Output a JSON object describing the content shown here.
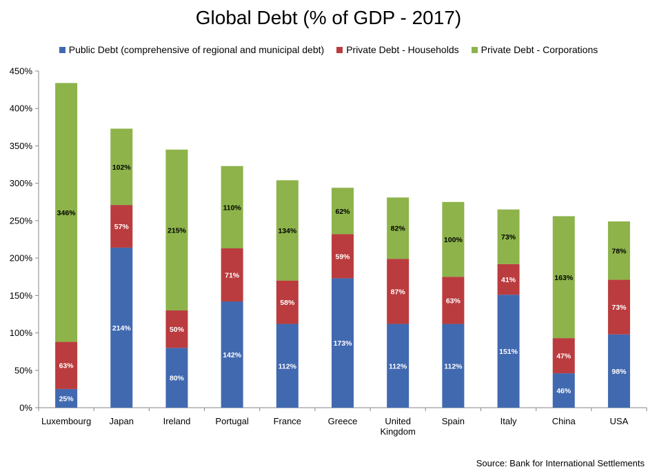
{
  "chart_data": {
    "type": "bar",
    "stacked": true,
    "title": "Global Debt (% of GDP - 2017)",
    "categories": [
      [
        "Luxembourg"
      ],
      [
        "Japan"
      ],
      [
        "Ireland"
      ],
      [
        "Portugal"
      ],
      [
        "France"
      ],
      [
        "Greece"
      ],
      [
        "United",
        "Kingdom"
      ],
      [
        "Spain"
      ],
      [
        "Italy"
      ],
      [
        "China"
      ],
      [
        "USA"
      ]
    ],
    "series": [
      {
        "name": "Public Debt (comprehensive of regional and municipal debt)",
        "color": "#4169B0",
        "label_color": "#ffffff",
        "values": [
          25,
          214,
          80,
          142,
          112,
          173,
          112,
          112,
          151,
          46,
          98
        ]
      },
      {
        "name": "Private Debt - Households",
        "color": "#BA3C3E",
        "label_color": "#ffffff",
        "values": [
          63,
          57,
          50,
          71,
          58,
          59,
          87,
          63,
          41,
          47,
          73
        ]
      },
      {
        "name": "Private Debt - Corporations",
        "color": "#8DB34A",
        "label_color": "#000000",
        "values": [
          346,
          102,
          215,
          110,
          134,
          62,
          82,
          100,
          73,
          163,
          78
        ]
      }
    ],
    "data_labels": [
      [
        "25%",
        "214%",
        "80%",
        "142%",
        "112%",
        "173%",
        "112%",
        "112%",
        "151%",
        "46%",
        "98%"
      ],
      [
        "63%",
        "57%",
        "50%",
        "71%",
        "58%",
        "59%",
        "87%",
        "63%",
        "41%",
        "47%",
        "73%"
      ],
      [
        "346%",
        "102%",
        "215%",
        "110%",
        "134%",
        "62%",
        "82%",
        "100%",
        "73%",
        "163%",
        "78%"
      ]
    ],
    "yticks": [
      0,
      50,
      100,
      150,
      200,
      250,
      300,
      350,
      400,
      450
    ],
    "ytick_labels": [
      "0%",
      "50%",
      "100%",
      "150%",
      "200%",
      "250%",
      "300%",
      "350%",
      "400%",
      "450%"
    ],
    "ylim": [
      0,
      450
    ],
    "grid": false,
    "legend_position": "top"
  },
  "source_note": "Source: Bank for International Settlements"
}
